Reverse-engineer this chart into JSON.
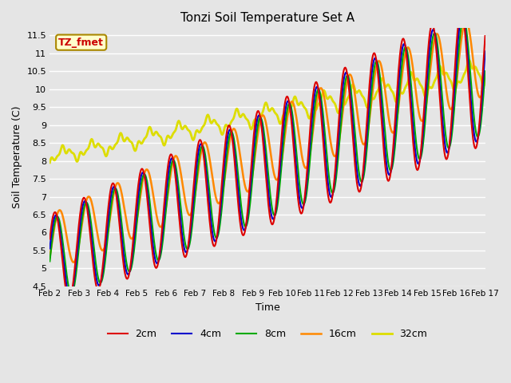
{
  "title": "Tonzi Soil Temperature Set A",
  "xlabel": "Time",
  "ylabel": "Soil Temperature (C)",
  "ylim": [
    4.5,
    11.7
  ],
  "plot_bg_color": "#e5e5e5",
  "annotation_text": "TZ_fmet",
  "annotation_color": "#cc0000",
  "annotation_bg": "#ffffcc",
  "annotation_border": "#aa8800",
  "series_order": [
    "2cm",
    "4cm",
    "8cm",
    "16cm",
    "32cm"
  ],
  "series": {
    "2cm": {
      "color": "#dd0000",
      "lw": 1.5
    },
    "4cm": {
      "color": "#0000cc",
      "lw": 1.5
    },
    "8cm": {
      "color": "#00aa00",
      "lw": 1.5
    },
    "16cm": {
      "color": "#ff8800",
      "lw": 1.8
    },
    "32cm": {
      "color": "#dddd00",
      "lw": 2.0
    }
  },
  "xtick_labels": [
    "Feb 2",
    "Feb 3",
    "Feb 4",
    "Feb 5",
    "Feb 6",
    "Feb 7",
    "Feb 8",
    "Feb 9",
    "Feb 10",
    "Feb 11",
    "Feb 12",
    "Feb 13",
    "Feb 14",
    "Feb 15",
    "Feb 16",
    "Feb 17"
  ],
  "ytick_vals": [
    4.5,
    5.0,
    5.5,
    6.0,
    6.5,
    7.0,
    7.5,
    8.0,
    8.5,
    9.0,
    9.5,
    10.0,
    10.5,
    11.0,
    11.5
  ],
  "legend_entries": [
    "2cm",
    "4cm",
    "8cm",
    "16cm",
    "32cm"
  ],
  "legend_colors": [
    "#dd0000",
    "#0000cc",
    "#00aa00",
    "#ff8800",
    "#dddd00"
  ]
}
